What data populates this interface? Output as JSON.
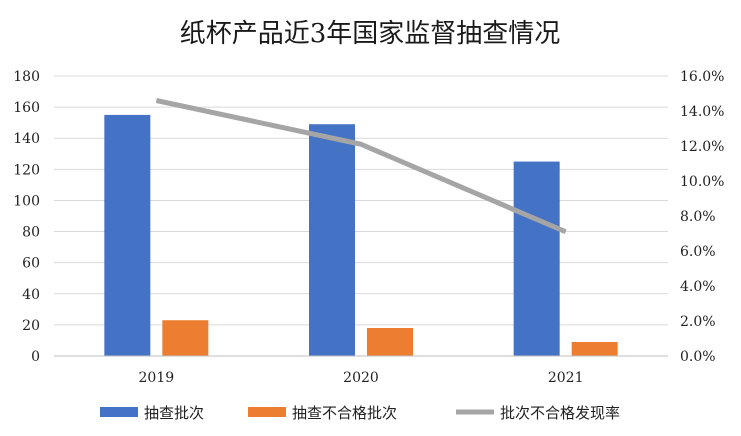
{
  "chart_data": {
    "type": "bar",
    "title": "纸杯产品近3年国家监督抽查情况",
    "categories": [
      "2019",
      "2020",
      "2021"
    ],
    "series": [
      {
        "name": "抽查批次",
        "type": "bar",
        "axis": "left",
        "values": [
          155,
          149,
          125
        ],
        "color": "#4472C4"
      },
      {
        "name": "抽查不合格批次",
        "type": "bar",
        "axis": "left",
        "values": [
          23,
          18,
          9
        ],
        "color": "#ED7D31"
      },
      {
        "name": "批次不合格发现率",
        "type": "line",
        "axis": "right",
        "values": [
          14.6,
          12.1,
          7.1
        ],
        "unit": "%",
        "color": "#A5A5A5"
      }
    ],
    "ylim_left": [
      0,
      180
    ],
    "yticks_left": [
      "0",
      "20",
      "40",
      "60",
      "80",
      "100",
      "120",
      "140",
      "160",
      "180"
    ],
    "ylim_right": [
      0,
      16
    ],
    "yticks_right": [
      "0.0%",
      "2.0%",
      "4.0%",
      "6.0%",
      "8.0%",
      "10.0%",
      "12.0%",
      "14.0%",
      "16.0%"
    ],
    "grid": true,
    "legend": "bottom"
  }
}
